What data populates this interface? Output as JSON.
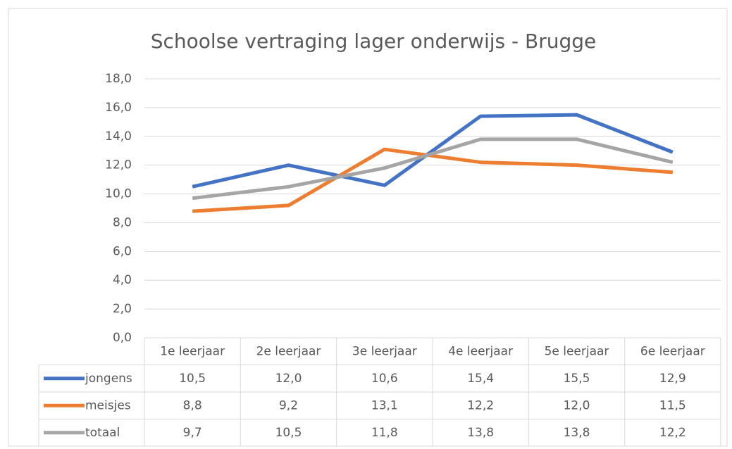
{
  "chart_data": {
    "type": "line",
    "title": "Schoolse vertraging lager onderwijs - Brugge",
    "categories": [
      "1e leerjaar",
      "2e leerjaar",
      "3e leerjaar",
      "4e leerjaar",
      "5e leerjaar",
      "6e leerjaar"
    ],
    "series": [
      {
        "name": "jongens",
        "color": "#4472c4",
        "values": [
          10.5,
          12.0,
          10.6,
          15.4,
          15.5,
          12.9
        ],
        "value_labels": [
          "10,5",
          "12,0",
          "10,6",
          "15,4",
          "15,5",
          "12,9"
        ]
      },
      {
        "name": "meisjes",
        "color": "#ed7d31",
        "values": [
          8.8,
          9.2,
          13.1,
          12.2,
          12.0,
          11.5
        ],
        "value_labels": [
          "8,8",
          "9,2",
          "13,1",
          "12,2",
          "12,0",
          "11,5"
        ]
      },
      {
        "name": "totaal",
        "color": "#a5a5a5",
        "values": [
          9.7,
          10.5,
          11.8,
          13.8,
          13.8,
          12.2
        ],
        "value_labels": [
          "9,7",
          "10,5",
          "11,8",
          "13,8",
          "13,8",
          "12,2"
        ]
      }
    ],
    "ylim": [
      0,
      18
    ],
    "yticks": [
      {
        "value": 0,
        "label": "0,0"
      },
      {
        "value": 2,
        "label": "2,0"
      },
      {
        "value": 4,
        "label": "4,0"
      },
      {
        "value": 6,
        "label": "6,0"
      },
      {
        "value": 8,
        "label": "8,0"
      },
      {
        "value": 10,
        "label": "10,0"
      },
      {
        "value": 12,
        "label": "12,0"
      },
      {
        "value": 14,
        "label": "14,0"
      },
      {
        "value": 16,
        "label": "16,0"
      },
      {
        "value": 18,
        "label": "18,0"
      }
    ],
    "grid": true
  }
}
